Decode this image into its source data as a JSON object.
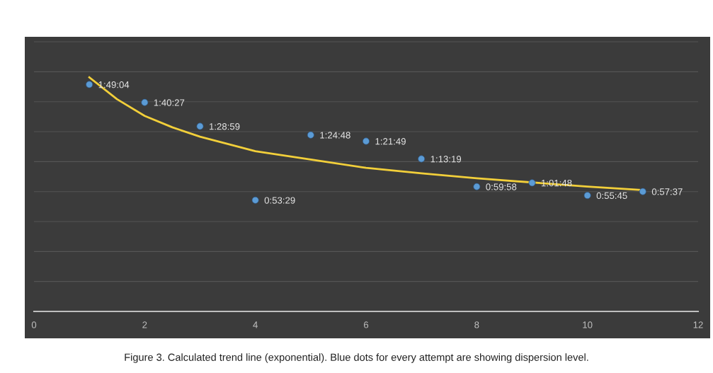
{
  "chart_data": {
    "type": "scatter",
    "x": [
      1,
      2,
      3,
      4,
      5,
      6,
      7,
      8,
      9,
      10,
      11
    ],
    "series": [
      {
        "color": "#5b9bd5",
        "values": [
          109.07,
          100.45,
          88.98,
          53.48,
          84.8,
          81.82,
          73.32,
          59.97,
          61.8,
          55.75,
          57.62
        ],
        "value_labels": [
          "1:49:04",
          "1:40:27",
          "1:28:59",
          "0:53:29",
          "1:24:48",
          "1:21:49",
          "1:13:19",
          "0:59:58",
          "1:01:48",
          "0:55:45",
          "0:57:37"
        ],
        "marker": "circle"
      },
      {
        "type": "line",
        "color": "#f2cf3a",
        "x": [
          1,
          1.5,
          2,
          2.5,
          3,
          4,
          5,
          6,
          7,
          8,
          9,
          10,
          11
        ],
        "values": [
          112.5,
          102,
          94,
          88.5,
          84,
          77,
          73,
          69,
          66.4,
          64,
          62,
          60,
          58.3
        ],
        "marker": "none",
        "line_style": "solid"
      }
    ],
    "xlim": [
      0,
      12
    ],
    "xticks": [
      0,
      2,
      4,
      6,
      8,
      10,
      12
    ],
    "ylim": [
      0,
      132
    ],
    "yticks": [
      {
        "value": 0,
        "label": null
      },
      {
        "value": 14.4,
        "label": null
      },
      {
        "value": 28.8,
        "label": null
      },
      {
        "value": 43.2,
        "label": null
      },
      {
        "value": 57.6,
        "label": null
      },
      {
        "value": 72,
        "label": null
      },
      {
        "value": 86.4,
        "label": null
      },
      {
        "value": 100.8,
        "label": null
      },
      {
        "value": 115.2,
        "label": null
      },
      {
        "value": 129.6,
        "label": null
      }
    ],
    "grid": "y",
    "annotations": [
      "Figure 3. Calculated trend line (exponential). Blue dots for every attempt are showing dispersion level."
    ]
  }
}
